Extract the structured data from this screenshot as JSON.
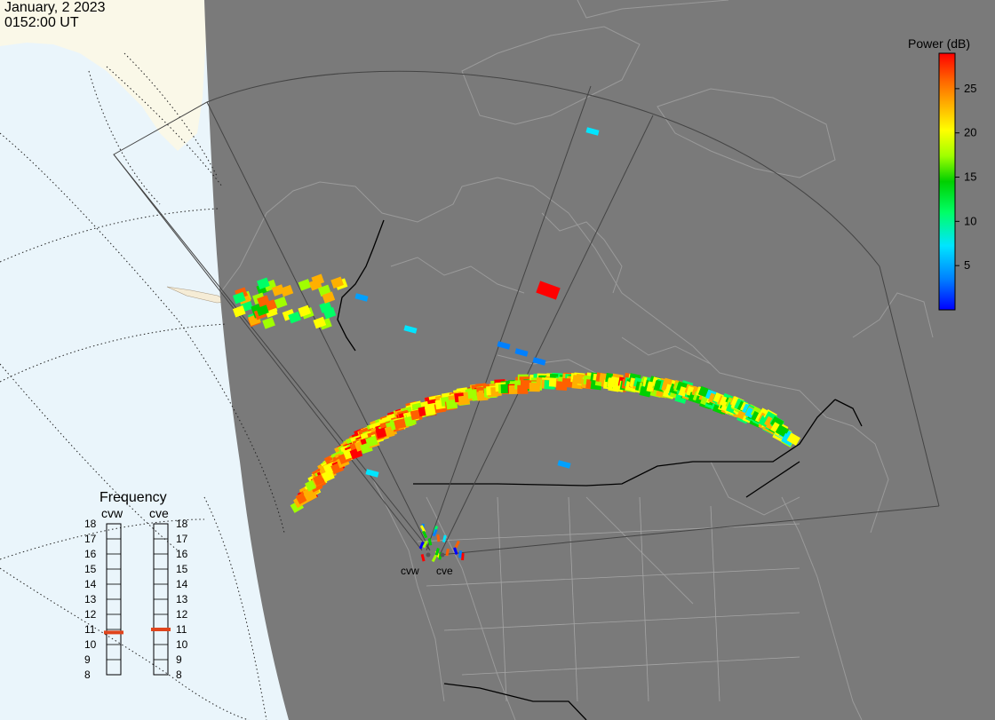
{
  "header": {
    "date": "January, 2 2023",
    "time": "0152:00 UT"
  },
  "colorbar": {
    "title": "Power (dB)",
    "ticks": [
      "25",
      "20",
      "15",
      "10",
      "5"
    ],
    "tick_values": [
      25,
      20,
      15,
      10,
      5
    ],
    "range": [
      0,
      29
    ],
    "colors": [
      "#0000ff",
      "#0080ff",
      "#00e5ff",
      "#00ff66",
      "#00d000",
      "#a0ff00",
      "#ffff00",
      "#ffb000",
      "#ff6000",
      "#ff0000"
    ]
  },
  "frequency_panel": {
    "title": "Frequency",
    "columns": [
      {
        "label": "cvw",
        "value_mhz": 10.8
      },
      {
        "label": "cve",
        "value_mhz": 11.0
      }
    ],
    "scale": [
      "18",
      "17",
      "16",
      "15",
      "14",
      "13",
      "12",
      "11",
      "10",
      "9",
      "8"
    ],
    "scale_min": 8,
    "scale_max": 18,
    "marker_color": "#e0441c"
  },
  "radars": [
    {
      "label": "cvw"
    },
    {
      "label": "cve"
    }
  ],
  "map_colors": {
    "night": "#7a7a7a",
    "day_ocean": "#eaf5fb",
    "day_land": "#faf8e8",
    "land_outline": "#9a9a9a",
    "borders": "#000000",
    "fov": "#444444"
  }
}
